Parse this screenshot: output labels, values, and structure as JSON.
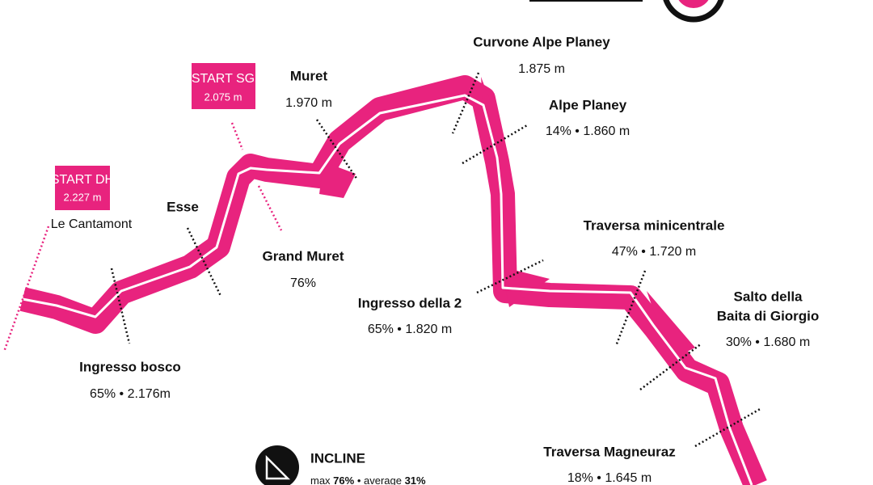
{
  "start_boxes": [
    {
      "title": "START DH",
      "elevation": "2.227 m"
    },
    {
      "title": "START SG",
      "elevation": "2.075 m"
    }
  ],
  "waypoints": [
    {
      "lines": [
        "Le Cantamont"
      ]
    },
    {
      "lines": [
        "Esse"
      ]
    },
    {
      "lines": [
        "Muret",
        "1.970 m"
      ]
    },
    {
      "lines": [
        "Curvone Alpe Planey",
        "1.875 m"
      ]
    },
    {
      "lines": [
        "Alpe Planey",
        "14% • 1.860 m"
      ]
    },
    {
      "lines": [
        "Grand Muret",
        "76%"
      ]
    },
    {
      "lines": [
        "Ingresso della 2",
        "65% • 1.820 m"
      ]
    },
    {
      "lines": [
        "Traversa minicentrale",
        "47% • 1.720 m"
      ]
    },
    {
      "lines": [
        "Salto della",
        "Baita di Giorgio",
        "30% • 1.680 m"
      ]
    },
    {
      "lines": [
        "Ingresso bosco",
        "65% • 2.176m"
      ]
    },
    {
      "lines": [
        "Traversa Magneuraz",
        "18% • 1.645 m"
      ]
    }
  ],
  "legend": {
    "title": "INCLINE",
    "text": [
      "max ",
      "76%",
      " • average ",
      "31%"
    ]
  }
}
